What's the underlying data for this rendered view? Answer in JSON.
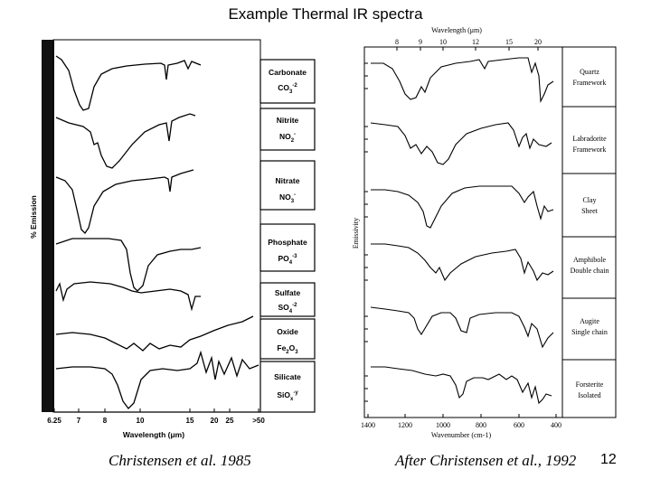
{
  "slide": {
    "title": "Example Thermal IR spectra",
    "page_number": "12"
  },
  "left_figure": {
    "y_axis_label": "% Emission",
    "x_axis_label": "Wavelength (μm)",
    "x_ticks": [
      "6.25",
      "7",
      "8",
      "10",
      "15",
      "20",
      "25",
      ">50"
    ],
    "minerals": [
      {
        "name": "Carbonate",
        "formula": "CO",
        "sub": "3",
        "sup": "-2"
      },
      {
        "name": "Nitrite",
        "formula": "NO",
        "sub": "2",
        "sup": "-"
      },
      {
        "name": "Nitrate",
        "formula": "NO",
        "sub": "3",
        "sup": "-"
      },
      {
        "name": "Phosphate",
        "formula": "PO",
        "sub": "4",
        "sup": "-3"
      },
      {
        "name": "Sulfate",
        "formula": "SO",
        "sub": "4",
        "sup": "-2"
      },
      {
        "name": "Oxide",
        "formula": "Fe",
        "sub": "2",
        "formula2": "O",
        "sub2": "3"
      },
      {
        "name": "Silicate",
        "formula": "SiO",
        "sub": "x",
        "sup": "-y"
      }
    ],
    "caption": "Christensen et al. 1985"
  },
  "right_figure": {
    "top_axis_label": "Wavelength (μm)",
    "top_ticks": [
      "8",
      "9",
      "10",
      "12",
      "15",
      "20"
    ],
    "y_axis_label": "Emissivity",
    "x_axis_label": "Wavenumber (cm-1)",
    "bottom_ticks": [
      "1400",
      "1200",
      "1000",
      "800",
      "600",
      "400"
    ],
    "minerals": [
      {
        "line1": "Quartz",
        "line2": "Framework"
      },
      {
        "line1": "Labradorite",
        "line2": "Framework"
      },
      {
        "line1": "Clay",
        "line2": "Sheet"
      },
      {
        "line1": "Amphibole",
        "line2": "Double chain"
      },
      {
        "line1": "Augite",
        "line2": "Single chain"
      },
      {
        "line1": "Forsterite",
        "line2": "Isolated"
      }
    ],
    "caption": "After Christensen et al., 1992"
  }
}
